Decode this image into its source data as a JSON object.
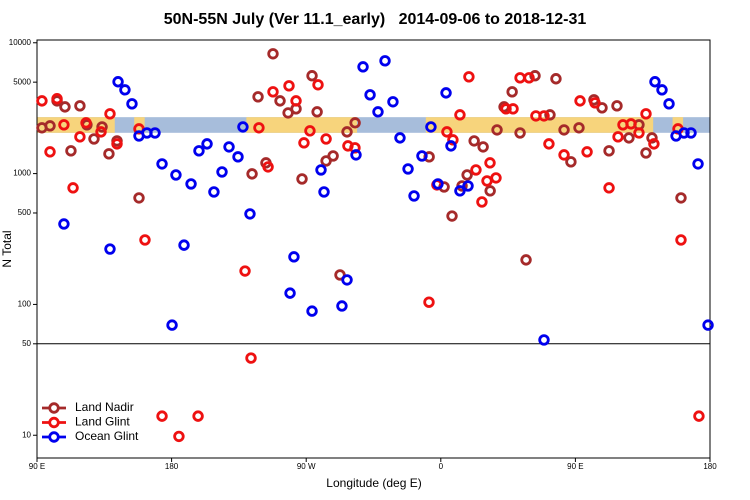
{
  "chart_data": {
    "type": "scatter",
    "title": "50N-55N July (Ver 11.1_early)   2014-09-06 to 2018-12-31",
    "x_label": "Longitude (deg E)",
    "y_label": "N Total",
    "xlim": [
      90,
      540
    ],
    "xticks": [
      {
        "value": 90,
        "label": "90 E"
      },
      {
        "value": 180,
        "label": "180"
      },
      {
        "value": 270,
        "label": "90 W"
      },
      {
        "value": 360,
        "label": "0"
      },
      {
        "value": 450,
        "label": "90 E"
      },
      {
        "value": 540,
        "label": "180"
      }
    ],
    "ylim": [
      6.7,
      10500
    ],
    "yticks": [
      10,
      50,
      100,
      500,
      1000,
      5000,
      10000
    ],
    "y_log": true,
    "reference_line": 50,
    "legend_position": "bottom-left",
    "surface_band": {
      "range": [
        2050,
        2700
      ],
      "ocean_color": "#a7bddb",
      "land_color": "#f7d47c",
      "land": [
        [
          90,
          142
        ],
        [
          155,
          162
        ],
        [
          230,
          304
        ],
        [
          350,
          502
        ],
        [
          515,
          522
        ]
      ]
    },
    "series": [
      {
        "name": "Land Nadir",
        "color": "#a52a2a",
        "x": [
          93.3,
          98.7,
          103.4,
          108.7,
          112.7,
          118.7,
          123.4,
          128.1,
          133.5,
          138.1,
          143.5,
          158.2,
          233.8,
          243.1,
          237.8,
          247.8,
          252.5,
          257.9,
          263.2,
          267.2,
          273.9,
          277.3,
          283.3,
          288,
          292.6,
          297.3,
          302.7,
          352.2,
          362.2,
          367.5,
          374.2,
          377.6,
          382.3,
          388.3,
          393,
          397.6,
          402.3,
          407.7,
          413,
          417,
          423,
          433,
          437,
          442.4,
          447,
          452.4,
          462.4,
          467.8,
          472.5,
          477.8,
          485.8,
          492.5,
          497.2,
          501.2,
          520.6
        ],
        "values": [
          2240,
          2317,
          3597,
          3236,
          1493,
          3296,
          2360,
          1841,
          2275,
          1416,
          1778,
          652,
          995,
          1208,
          3864,
          8241,
          3597,
          2911,
          3126,
          910,
          5598,
          2965,
          1250,
          1365,
          168,
          2084,
          2443,
          1343,
          791,
          474,
          805,
          977,
          1778,
          1600,
          738,
          2158,
          3236,
          4217,
          2046,
          219,
          5598,
          2812,
          5309,
          2158,
          1230,
          2240,
          3664,
          3184,
          1493,
          3296,
          1875,
          2360,
          1439,
          1875,
          652
        ]
      },
      {
        "name": "Land Glint",
        "color": "#ee1111",
        "x": [
          93.3,
          98.7,
          103.4,
          108,
          114.1,
          118.7,
          122.8,
          132.8,
          138.8,
          143.5,
          158.2,
          162.2,
          173.6,
          184.9,
          197.7,
          229.1,
          233.1,
          238.4,
          244.5,
          247.8,
          258.5,
          263.2,
          268.5,
          272.5,
          277.9,
          283.3,
          297.9,
          302.6,
          352.1,
          357.4,
          364.1,
          368.1,
          372.8,
          378.8,
          383.5,
          387.5,
          390.9,
          392.9,
          396.9,
          403.6,
          408.3,
          413,
          419,
          423.6,
          429,
          432.3,
          442.4,
          453.1,
          457.8,
          463.1,
          472.5,
          478.5,
          481.8,
          487.2,
          492.5,
          497.2,
          502.5,
          518.6,
          520.6,
          532.6
        ],
        "values": [
          3597,
          1466,
          3733,
          2360,
          778,
          1910,
          2443,
          2084,
          2864,
          1687,
          2198,
          311,
          14,
          9.8,
          14,
          180,
          38.9,
          2240,
          1125,
          4217,
          4688,
          3597,
          1718,
          2123,
          4775,
          1841,
          1629,
          1574,
          104,
          820,
          2084,
          1811,
          2812,
          5495,
          1067,
          607,
          879,
          1208,
          927,
          3126,
          3126,
          5395,
          5395,
          2761,
          2761,
          1687,
          1390,
          3597,
          1466,
          3475,
          778,
          1910,
          2360,
          2399,
          2046,
          2864,
          1687,
          2198,
          311,
          14
        ]
      },
      {
        "name": "Ocean Glint",
        "color": "#0000ee",
        "x": [
          108,
          138.8,
          144.2,
          148.8,
          153.5,
          158.2,
          163.5,
          168.9,
          173.6,
          180.3,
          182.9,
          188.3,
          193,
          198.3,
          203.7,
          208.3,
          213.7,
          218.4,
          224.4,
          227.7,
          232.4,
          259.2,
          261.8,
          273.9,
          279.9,
          281.9,
          293.9,
          297.3,
          303.3,
          308,
          312.7,
          318,
          322.7,
          328,
          332.7,
          338.1,
          342.1,
          347.4,
          353.4,
          358.1,
          363.5,
          366.8,
          372.8,
          378.2,
          429,
          503.2,
          507.9,
          512.6,
          517.3,
          522.6,
          527.3,
          532,
          538.7
        ],
        "values": [
          412,
          265,
          5035,
          4366,
          3415,
          1941,
          2046,
          2046,
          1186,
          69.5,
          977,
          284,
          834,
          1493,
          1687,
          724,
          1030,
          1600,
          1343,
          2275,
          492,
          122,
          231,
          88.9,
          1067,
          724,
          97.3,
          154,
          1390,
          6546,
          4000,
          2965,
          7278,
          3540,
          1875,
          1086,
          675,
          1365,
          2275,
          834,
          4140,
          1629,
          738,
          805,
          53.5,
          5035,
          4366,
          3415,
          1941,
          2046,
          2046,
          1186,
          69.5
        ]
      }
    ]
  }
}
